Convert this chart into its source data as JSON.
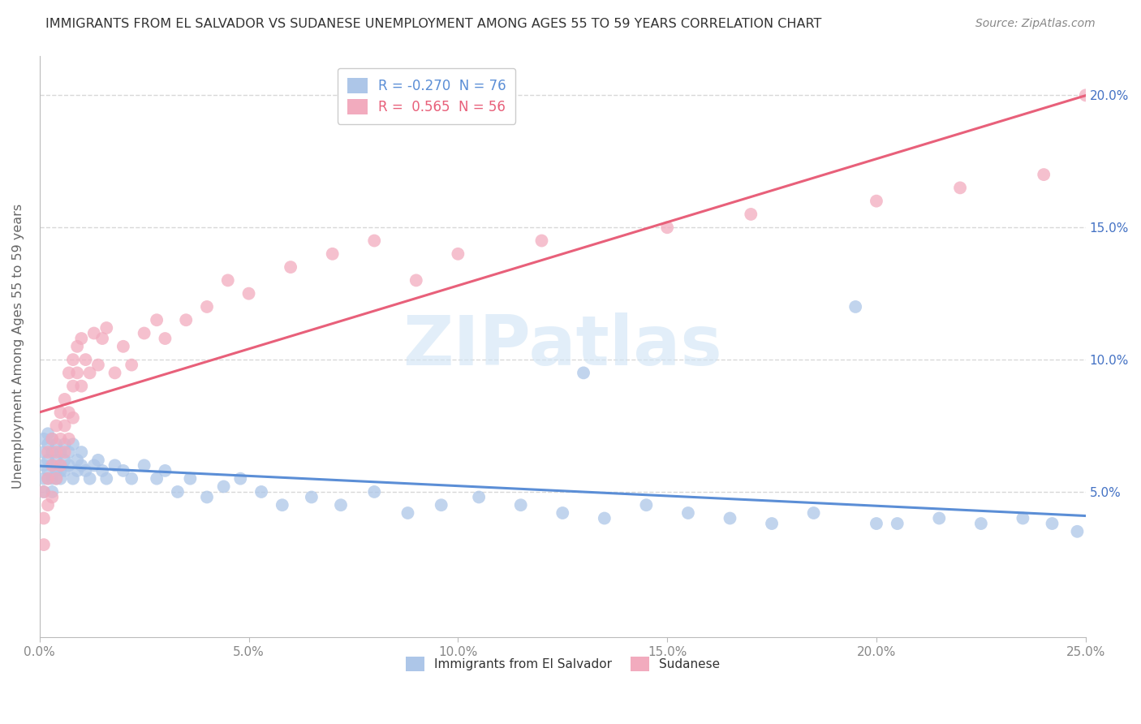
{
  "title": "IMMIGRANTS FROM EL SALVADOR VS SUDANESE UNEMPLOYMENT AMONG AGES 55 TO 59 YEARS CORRELATION CHART",
  "source": "Source: ZipAtlas.com",
  "ylabel": "Unemployment Among Ages 55 to 59 years",
  "xlim": [
    0.0,
    0.25
  ],
  "ylim": [
    -0.005,
    0.215
  ],
  "xticks": [
    0.0,
    0.05,
    0.1,
    0.15,
    0.2,
    0.25
  ],
  "xticklabels": [
    "0.0%",
    "5.0%",
    "10.0%",
    "15.0%",
    "20.0%",
    "25.0%"
  ],
  "yticks": [
    0.05,
    0.1,
    0.15,
    0.2
  ],
  "yticklabels": [
    "5.0%",
    "10.0%",
    "15.0%",
    "20.0%"
  ],
  "blue_R": -0.27,
  "blue_N": 76,
  "pink_R": 0.565,
  "pink_N": 56,
  "blue_color": "#adc6e8",
  "pink_color": "#f2abbe",
  "blue_line_color": "#5b8ed6",
  "pink_line_color": "#e8607a",
  "watermark_color": "#d0e4f5",
  "legend_label_blue": "Immigrants from El Salvador",
  "legend_label_pink": "Sudanese",
  "blue_scatter_x": [
    0.001,
    0.001,
    0.001,
    0.001,
    0.001,
    0.002,
    0.002,
    0.002,
    0.002,
    0.002,
    0.003,
    0.003,
    0.003,
    0.003,
    0.003,
    0.004,
    0.004,
    0.004,
    0.004,
    0.005,
    0.005,
    0.005,
    0.005,
    0.006,
    0.006,
    0.006,
    0.007,
    0.007,
    0.008,
    0.008,
    0.009,
    0.009,
    0.01,
    0.01,
    0.011,
    0.012,
    0.013,
    0.014,
    0.015,
    0.016,
    0.018,
    0.02,
    0.022,
    0.025,
    0.028,
    0.03,
    0.033,
    0.036,
    0.04,
    0.044,
    0.048,
    0.053,
    0.058,
    0.065,
    0.072,
    0.08,
    0.088,
    0.096,
    0.105,
    0.115,
    0.125,
    0.135,
    0.145,
    0.155,
    0.165,
    0.175,
    0.185,
    0.195,
    0.205,
    0.215,
    0.225,
    0.235,
    0.242,
    0.248,
    0.13,
    0.2
  ],
  "blue_scatter_y": [
    0.06,
    0.065,
    0.055,
    0.07,
    0.05,
    0.062,
    0.058,
    0.068,
    0.055,
    0.072,
    0.06,
    0.065,
    0.055,
    0.05,
    0.07,
    0.058,
    0.062,
    0.068,
    0.055,
    0.06,
    0.065,
    0.058,
    0.055,
    0.062,
    0.068,
    0.058,
    0.06,
    0.065,
    0.055,
    0.068,
    0.058,
    0.062,
    0.06,
    0.065,
    0.058,
    0.055,
    0.06,
    0.062,
    0.058,
    0.055,
    0.06,
    0.058,
    0.055,
    0.06,
    0.055,
    0.058,
    0.05,
    0.055,
    0.048,
    0.052,
    0.055,
    0.05,
    0.045,
    0.048,
    0.045,
    0.05,
    0.042,
    0.045,
    0.048,
    0.045,
    0.042,
    0.04,
    0.045,
    0.042,
    0.04,
    0.038,
    0.042,
    0.12,
    0.038,
    0.04,
    0.038,
    0.04,
    0.038,
    0.035,
    0.095,
    0.038
  ],
  "pink_scatter_x": [
    0.001,
    0.001,
    0.001,
    0.002,
    0.002,
    0.002,
    0.003,
    0.003,
    0.003,
    0.004,
    0.004,
    0.004,
    0.005,
    0.005,
    0.005,
    0.006,
    0.006,
    0.006,
    0.007,
    0.007,
    0.007,
    0.008,
    0.008,
    0.008,
    0.009,
    0.009,
    0.01,
    0.01,
    0.011,
    0.012,
    0.013,
    0.014,
    0.015,
    0.016,
    0.018,
    0.02,
    0.022,
    0.025,
    0.028,
    0.03,
    0.035,
    0.04,
    0.045,
    0.05,
    0.06,
    0.07,
    0.08,
    0.09,
    0.1,
    0.12,
    0.15,
    0.17,
    0.2,
    0.22,
    0.24,
    0.25
  ],
  "pink_scatter_y": [
    0.03,
    0.04,
    0.05,
    0.055,
    0.065,
    0.045,
    0.06,
    0.07,
    0.048,
    0.075,
    0.055,
    0.065,
    0.07,
    0.08,
    0.06,
    0.075,
    0.085,
    0.065,
    0.08,
    0.095,
    0.07,
    0.09,
    0.1,
    0.078,
    0.095,
    0.105,
    0.09,
    0.108,
    0.1,
    0.095,
    0.11,
    0.098,
    0.108,
    0.112,
    0.095,
    0.105,
    0.098,
    0.11,
    0.115,
    0.108,
    0.115,
    0.12,
    0.13,
    0.125,
    0.135,
    0.14,
    0.145,
    0.13,
    0.14,
    0.145,
    0.15,
    0.155,
    0.16,
    0.165,
    0.17,
    0.2
  ],
  "background_color": "#ffffff",
  "grid_color": "#d8d8d8",
  "axis_color": "#bbbbbb",
  "tick_label_color_left": "#888888",
  "tick_label_color_right": "#4472c4",
  "legend_border_color": "#cccccc"
}
